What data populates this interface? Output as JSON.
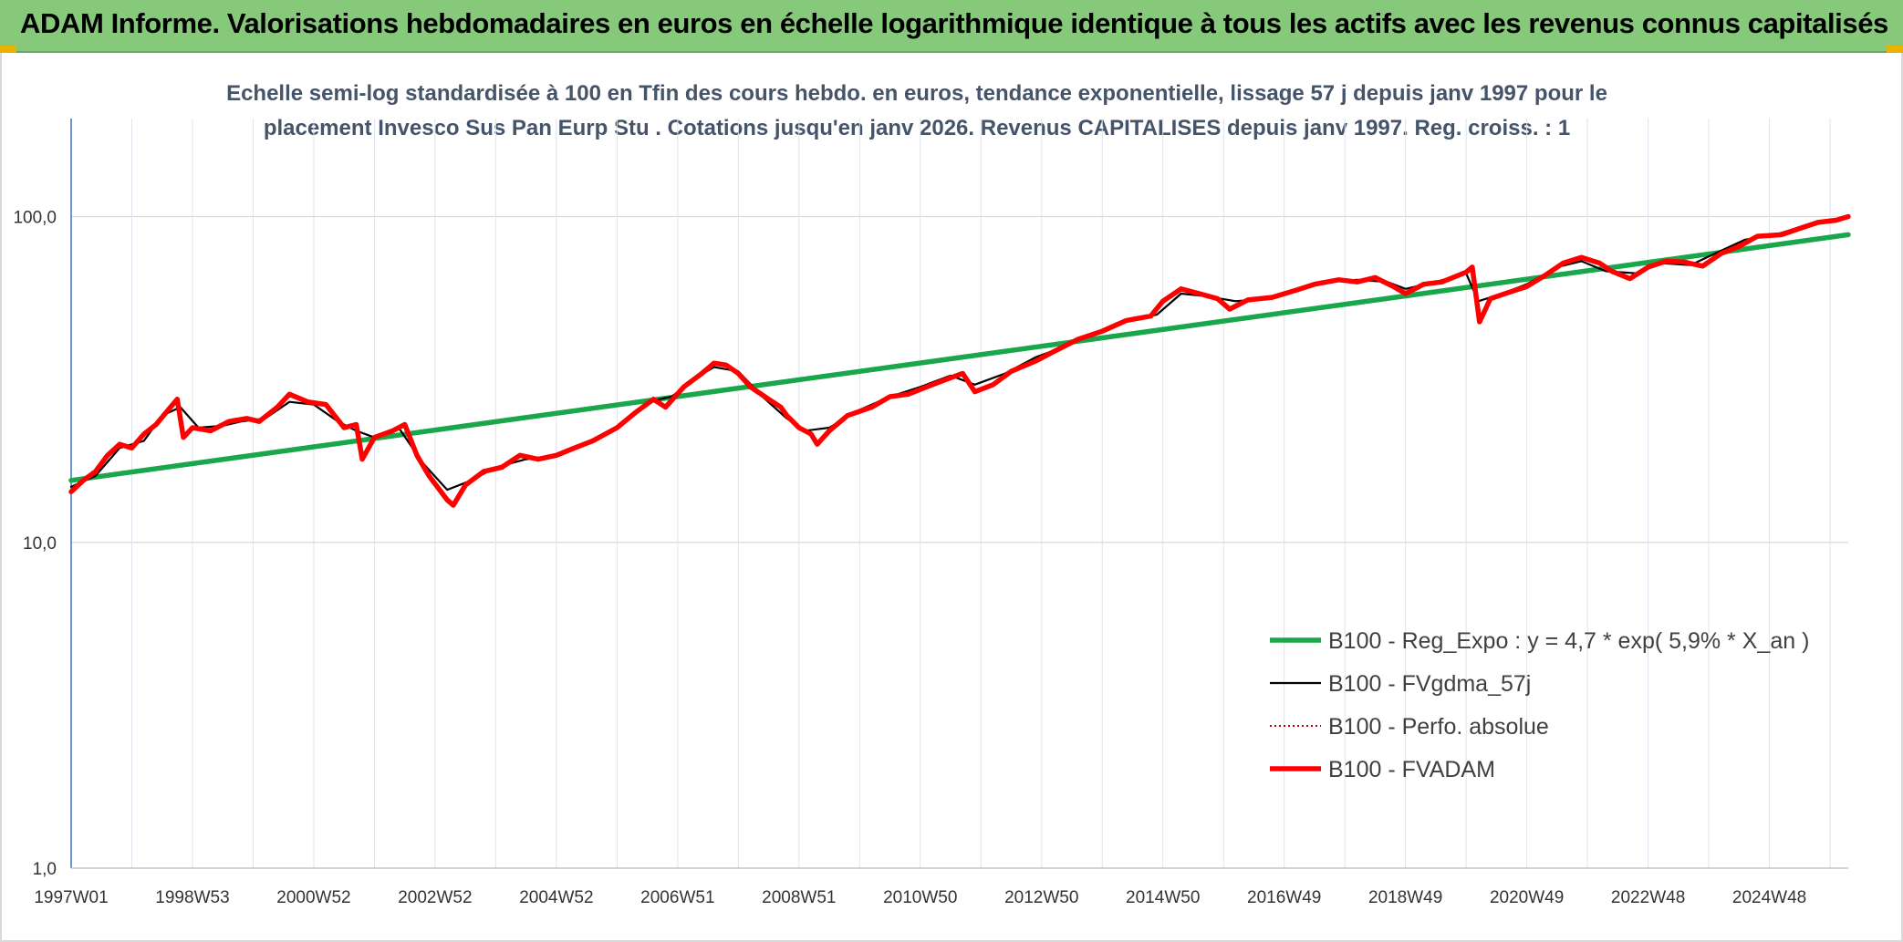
{
  "header": {
    "title": "ADAM Informe. Valorisations hebdomadaires en euros en échelle logarithmique identique à tous les actifs avec les revenus connus capitalisés",
    "background_color": "#86c97b"
  },
  "chart_data": {
    "type": "line",
    "title_line1": "Echelle semi-log standardisée à 100 en Tfin des cours hebdo. en euros, tendance exponentielle, lissage 57 j depuis janv 1997 pour le",
    "title_line2": "placement Invesco Sus Pan Eurp Stu . Cotations jusqu'en janv 2026. Revenus CAPITALISES depuis janv 1997. Reg. croiss. : 1",
    "y_scale": "log",
    "ylim": [
      1,
      200
    ],
    "y_ticks": [
      {
        "value": 1,
        "label": "1,0"
      },
      {
        "value": 10,
        "label": "10,0"
      },
      {
        "value": 100,
        "label": "100,0"
      }
    ],
    "x_unit": "year",
    "xlim": [
      1997.0,
      2026.3
    ],
    "x_ticks": [
      {
        "x": 1997.0,
        "label": "1997W01"
      },
      {
        "x": 1999.0,
        "label": "1998W53"
      },
      {
        "x": 2001.0,
        "label": "2000W52"
      },
      {
        "x": 2003.0,
        "label": "2002W52"
      },
      {
        "x": 2005.0,
        "label": "2004W52"
      },
      {
        "x": 2007.0,
        "label": "2006W51"
      },
      {
        "x": 2009.0,
        "label": "2008W51"
      },
      {
        "x": 2011.0,
        "label": "2010W50"
      },
      {
        "x": 2013.0,
        "label": "2012W50"
      },
      {
        "x": 2015.0,
        "label": "2014W50"
      },
      {
        "x": 2017.0,
        "label": "2016W49"
      },
      {
        "x": 2019.0,
        "label": "2018W49"
      },
      {
        "x": 2021.0,
        "label": "2020W49"
      },
      {
        "x": 2023.0,
        "label": "2022W48"
      },
      {
        "x": 2025.0,
        "label": "2024W48"
      }
    ],
    "grid": true,
    "legend_position": "bottom-right",
    "series": [
      {
        "name": "B100 - Reg_Expo : y = 4,7 * exp( 5,9% * X_an )",
        "color": "#1aa64a",
        "style": "solid-thick",
        "points": [
          [
            1997.0,
            15.5
          ],
          [
            2026.3,
            88.0
          ]
        ]
      },
      {
        "name": "B100 - FVgdma_57j",
        "color": "#000000",
        "style": "solid-thin",
        "points": [
          [
            1997.0,
            14.8
          ],
          [
            1997.4,
            16.0
          ],
          [
            1997.8,
            19.5
          ],
          [
            1998.2,
            20.5
          ],
          [
            1998.5,
            24.5
          ],
          [
            1998.8,
            26.0
          ],
          [
            1999.1,
            22.5
          ],
          [
            1999.5,
            22.8
          ],
          [
            1999.8,
            23.5
          ],
          [
            2000.2,
            24.0
          ],
          [
            2000.6,
            27.0
          ],
          [
            2001.0,
            26.5
          ],
          [
            2001.4,
            23.5
          ],
          [
            2001.7,
            22.0
          ],
          [
            2002.0,
            21.0
          ],
          [
            2002.4,
            22.5
          ],
          [
            2002.8,
            17.5
          ],
          [
            2003.2,
            14.5
          ],
          [
            2003.6,
            15.5
          ],
          [
            2004.0,
            17.0
          ],
          [
            2004.5,
            18.0
          ],
          [
            2005.0,
            18.5
          ],
          [
            2005.5,
            20.0
          ],
          [
            2006.0,
            22.5
          ],
          [
            2006.5,
            27.0
          ],
          [
            2006.9,
            28.0
          ],
          [
            2007.3,
            32.0
          ],
          [
            2007.6,
            34.5
          ],
          [
            2008.0,
            33.5
          ],
          [
            2008.4,
            28.0
          ],
          [
            2008.8,
            24.0
          ],
          [
            2009.1,
            22.0
          ],
          [
            2009.5,
            22.5
          ],
          [
            2010.0,
            25.5
          ],
          [
            2010.5,
            28.0
          ],
          [
            2011.0,
            30.0
          ],
          [
            2011.5,
            32.5
          ],
          [
            2011.9,
            30.5
          ],
          [
            2012.4,
            33.0
          ],
          [
            2012.9,
            37.0
          ],
          [
            2013.4,
            40.0
          ],
          [
            2013.9,
            44.0
          ],
          [
            2014.4,
            48.0
          ],
          [
            2014.9,
            50.0
          ],
          [
            2015.3,
            58.0
          ],
          [
            2015.7,
            57.0
          ],
          [
            2016.2,
            55.0
          ],
          [
            2016.7,
            56.0
          ],
          [
            2017.2,
            60.0
          ],
          [
            2017.7,
            63.0
          ],
          [
            2018.2,
            64.0
          ],
          [
            2018.7,
            63.0
          ],
          [
            2019.0,
            60.0
          ],
          [
            2019.5,
            63.0
          ],
          [
            2020.0,
            67.0
          ],
          [
            2020.2,
            55.0
          ],
          [
            2020.6,
            58.0
          ],
          [
            2021.0,
            62.0
          ],
          [
            2021.5,
            70.0
          ],
          [
            2021.9,
            73.0
          ],
          [
            2022.3,
            68.0
          ],
          [
            2022.8,
            67.0
          ],
          [
            2023.2,
            72.0
          ],
          [
            2023.7,
            71.0
          ],
          [
            2024.1,
            77.0
          ],
          [
            2024.6,
            85.0
          ],
          [
            2025.1,
            88.0
          ],
          [
            2025.6,
            94.0
          ],
          [
            2026.2,
            99.0
          ]
        ]
      },
      {
        "name": "B100 - Perfo. absolue",
        "color": "#c00000",
        "style": "dotted"
      },
      {
        "name": "B100 - FVADAM",
        "color": "#ff0000",
        "style": "solid-thick",
        "points": [
          [
            1997.0,
            14.3
          ],
          [
            1997.2,
            15.5
          ],
          [
            1997.4,
            16.5
          ],
          [
            1997.6,
            18.5
          ],
          [
            1997.8,
            20.0
          ],
          [
            1998.0,
            19.5
          ],
          [
            1998.2,
            21.5
          ],
          [
            1998.4,
            23.0
          ],
          [
            1998.6,
            25.5
          ],
          [
            1998.75,
            27.5
          ],
          [
            1998.85,
            21.0
          ],
          [
            1999.0,
            22.5
          ],
          [
            1999.3,
            22.0
          ],
          [
            1999.6,
            23.5
          ],
          [
            1999.9,
            24.0
          ],
          [
            2000.1,
            23.5
          ],
          [
            2000.4,
            26.0
          ],
          [
            2000.6,
            28.5
          ],
          [
            2000.9,
            27.0
          ],
          [
            2001.2,
            26.5
          ],
          [
            2001.5,
            22.5
          ],
          [
            2001.7,
            23.0
          ],
          [
            2001.8,
            18.0
          ],
          [
            2002.0,
            21.0
          ],
          [
            2002.3,
            22.0
          ],
          [
            2002.5,
            23.0
          ],
          [
            2002.7,
            18.5
          ],
          [
            2002.9,
            16.0
          ],
          [
            2003.2,
            13.5
          ],
          [
            2003.3,
            13.0
          ],
          [
            2003.5,
            15.0
          ],
          [
            2003.8,
            16.5
          ],
          [
            2004.1,
            17.0
          ],
          [
            2004.4,
            18.5
          ],
          [
            2004.7,
            18.0
          ],
          [
            2005.0,
            18.5
          ],
          [
            2005.3,
            19.5
          ],
          [
            2005.6,
            20.5
          ],
          [
            2006.0,
            22.5
          ],
          [
            2006.3,
            25.0
          ],
          [
            2006.6,
            27.5
          ],
          [
            2006.8,
            26.0
          ],
          [
            2007.1,
            30.0
          ],
          [
            2007.4,
            33.0
          ],
          [
            2007.6,
            35.5
          ],
          [
            2007.8,
            35.0
          ],
          [
            2008.0,
            33.0
          ],
          [
            2008.2,
            30.0
          ],
          [
            2008.5,
            27.5
          ],
          [
            2008.7,
            26.0
          ],
          [
            2008.8,
            24.5
          ],
          [
            2009.0,
            22.5
          ],
          [
            2009.2,
            21.5
          ],
          [
            2009.3,
            20.0
          ],
          [
            2009.5,
            22.0
          ],
          [
            2009.8,
            24.5
          ],
          [
            2010.2,
            26.0
          ],
          [
            2010.5,
            28.0
          ],
          [
            2010.8,
            28.5
          ],
          [
            2011.2,
            30.5
          ],
          [
            2011.5,
            32.0
          ],
          [
            2011.7,
            33.0
          ],
          [
            2011.9,
            29.0
          ],
          [
            2012.2,
            30.5
          ],
          [
            2012.5,
            33.5
          ],
          [
            2012.9,
            36.0
          ],
          [
            2013.2,
            38.5
          ],
          [
            2013.6,
            42.0
          ],
          [
            2014.0,
            44.5
          ],
          [
            2014.4,
            48.0
          ],
          [
            2014.8,
            49.5
          ],
          [
            2015.0,
            55.0
          ],
          [
            2015.3,
            60.0
          ],
          [
            2015.6,
            58.0
          ],
          [
            2015.9,
            56.0
          ],
          [
            2016.1,
            52.0
          ],
          [
            2016.4,
            55.5
          ],
          [
            2016.8,
            56.5
          ],
          [
            2017.2,
            59.5
          ],
          [
            2017.5,
            62.0
          ],
          [
            2017.9,
            64.0
          ],
          [
            2018.2,
            63.0
          ],
          [
            2018.5,
            65.0
          ],
          [
            2018.8,
            61.0
          ],
          [
            2019.0,
            58.0
          ],
          [
            2019.3,
            62.0
          ],
          [
            2019.6,
            63.0
          ],
          [
            2020.0,
            67.5
          ],
          [
            2020.1,
            70.0
          ],
          [
            2020.22,
            47.5
          ],
          [
            2020.4,
            56.0
          ],
          [
            2020.7,
            58.5
          ],
          [
            2021.0,
            61.0
          ],
          [
            2021.3,
            66.0
          ],
          [
            2021.6,
            72.0
          ],
          [
            2021.9,
            75.0
          ],
          [
            2022.2,
            72.0
          ],
          [
            2022.4,
            68.0
          ],
          [
            2022.7,
            64.5
          ],
          [
            2023.0,
            70.0
          ],
          [
            2023.3,
            73.0
          ],
          [
            2023.6,
            72.5
          ],
          [
            2023.9,
            70.5
          ],
          [
            2024.2,
            77.0
          ],
          [
            2024.5,
            81.0
          ],
          [
            2024.8,
            87.0
          ],
          [
            2025.2,
            88.0
          ],
          [
            2025.5,
            92.0
          ],
          [
            2025.8,
            96.0
          ],
          [
            2026.1,
            97.5
          ],
          [
            2026.3,
            100.0
          ]
        ]
      }
    ]
  }
}
